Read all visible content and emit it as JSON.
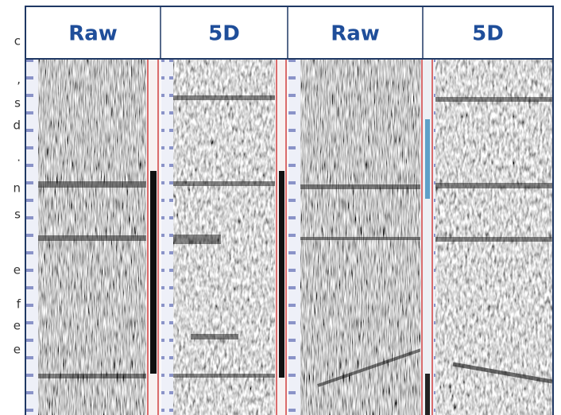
{
  "header": {
    "columns": [
      "Raw",
      "5D",
      "Raw",
      "5D"
    ]
  },
  "margin_text": [
    "c",
    ",",
    "s",
    "d",
    ".",
    "n",
    "s",
    "e",
    "f",
    "e",
    "e"
  ]
}
